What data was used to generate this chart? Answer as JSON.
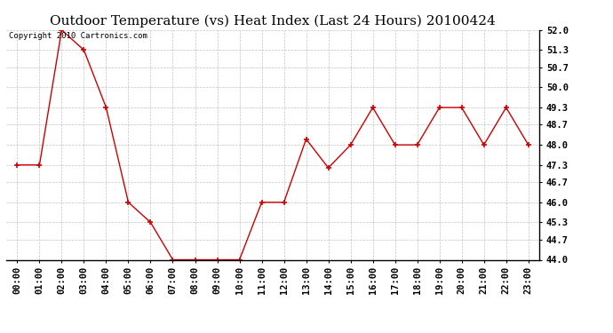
{
  "title": "Outdoor Temperature (vs) Heat Index (Last 24 Hours) 20100424",
  "copyright": "Copyright 2010 Cartronics.com",
  "x_labels": [
    "00:00",
    "01:00",
    "02:00",
    "03:00",
    "04:00",
    "05:00",
    "06:00",
    "07:00",
    "08:00",
    "09:00",
    "10:00",
    "11:00",
    "12:00",
    "13:00",
    "14:00",
    "15:00",
    "16:00",
    "17:00",
    "18:00",
    "19:00",
    "20:00",
    "21:00",
    "22:00",
    "23:00"
  ],
  "y_values": [
    47.3,
    47.3,
    52.0,
    51.3,
    49.3,
    46.0,
    45.3,
    44.0,
    44.0,
    44.0,
    44.0,
    46.0,
    46.0,
    48.2,
    47.2,
    48.0,
    49.3,
    48.0,
    48.0,
    49.3,
    49.3,
    48.0,
    49.3,
    48.0
  ],
  "y_min": 44.0,
  "y_max": 52.0,
  "y_ticks": [
    44.0,
    44.7,
    45.3,
    46.0,
    46.7,
    47.3,
    48.0,
    48.7,
    49.3,
    50.0,
    50.7,
    51.3,
    52.0
  ],
  "line_color": "#cc0000",
  "marker": "+",
  "marker_size": 5,
  "marker_linewidth": 1.2,
  "line_width": 1.0,
  "background_color": "#ffffff",
  "plot_bg_color": "#ffffff",
  "grid_color": "#bbbbbb",
  "title_fontsize": 11,
  "copyright_fontsize": 6.5,
  "tick_fontsize": 7.5,
  "tick_fontweight": "bold"
}
